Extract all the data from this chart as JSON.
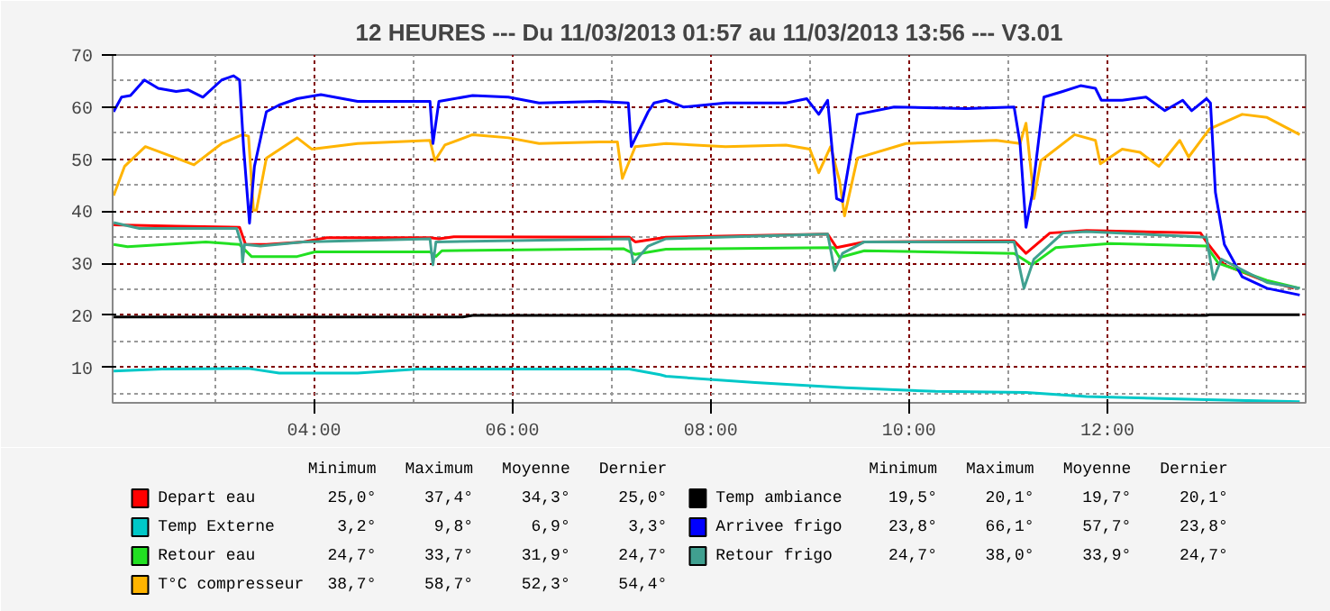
{
  "chart_data": {
    "type": "line",
    "title": "12 HEURES --- Du 11/03/2013 01:57 au 11/03/2013 13:56 --- V3.01",
    "xlim": [
      1.97,
      14.0
    ],
    "xticks": [
      {
        "value": 4,
        "label": "04:00"
      },
      {
        "value": 6,
        "label": "06:00"
      },
      {
        "value": 8,
        "label": "08:00"
      },
      {
        "value": 10,
        "label": "10:00"
      },
      {
        "value": 12,
        "label": "12:00"
      }
    ],
    "ylim": [
      3.2,
      70
    ],
    "yticks": [
      10,
      20,
      30,
      40,
      50,
      60,
      70
    ],
    "grid": true,
    "legend": "bottom",
    "series": [
      {
        "name": "Depart eau",
        "color": "#ff0000",
        "x": [
          1.98,
          2.61,
          3.25,
          3.31,
          3.52,
          3.89,
          4.13,
          5.17,
          5.26,
          5.41,
          7.18,
          7.24,
          7.55,
          9.18,
          9.27,
          9.55,
          11.06,
          11.18,
          11.42,
          11.79,
          12.94,
          13.0,
          13.18,
          13.55,
          13.88
        ],
        "values": [
          37.4,
          37.1,
          36.9,
          33.6,
          33.6,
          34.1,
          34.9,
          34.9,
          34.7,
          35.1,
          35.0,
          34.1,
          35.0,
          35.6,
          33.0,
          34.1,
          34.3,
          31.9,
          35.8,
          36.3,
          35.8,
          34.1,
          29.7,
          26.9,
          25.2
        ]
      },
      {
        "name": "Temp Externe",
        "color": "#00c8c8",
        "x": [
          1.98,
          2.47,
          3.34,
          3.65,
          4.44,
          5.05,
          7.18,
          7.49,
          7.55,
          8.45,
          9.36,
          10.27,
          11.18,
          11.79,
          13.0,
          13.94
        ],
        "values": [
          9.3,
          9.7,
          9.8,
          8.9,
          8.9,
          9.7,
          9.7,
          8.6,
          8.3,
          7.1,
          6.1,
          5.4,
          5.2,
          4.4,
          3.8,
          3.4
        ]
      },
      {
        "name": "Retour eau",
        "color": "#22e022",
        "x": [
          1.98,
          2.12,
          2.91,
          3.25,
          3.37,
          3.83,
          4.01,
          5.17,
          5.23,
          5.29,
          7.12,
          7.24,
          7.55,
          9.24,
          9.3,
          9.55,
          11.06,
          11.24,
          11.48,
          12.03,
          13.0,
          13.12,
          13.61,
          13.94
        ],
        "values": [
          33.6,
          33.2,
          34.1,
          33.6,
          31.3,
          31.3,
          32.2,
          32.2,
          31.3,
          32.4,
          32.8,
          31.7,
          32.7,
          33.0,
          31.1,
          32.4,
          31.9,
          29.7,
          33.0,
          33.8,
          33.3,
          30.0,
          26.7,
          25.2
        ]
      },
      {
        "name": "T°C compresseur",
        "color": "#ffb400",
        "x": [
          1.98,
          2.09,
          2.3,
          2.61,
          2.79,
          3.07,
          3.28,
          3.34,
          3.39,
          3.42,
          3.52,
          3.83,
          3.98,
          4.44,
          5.17,
          5.22,
          5.32,
          5.6,
          5.96,
          6.27,
          6.88,
          7.06,
          7.11,
          7.24,
          7.55,
          8.15,
          8.76,
          9.0,
          9.09,
          9.21,
          9.3,
          9.35,
          9.48,
          9.97,
          10.88,
          11.12,
          11.18,
          11.26,
          11.33,
          11.67,
          11.88,
          11.93,
          12.15,
          12.33,
          12.52,
          12.73,
          12.82,
          13.03,
          13.36,
          13.61,
          13.94
        ],
        "values": [
          43.0,
          48.6,
          52.4,
          50.2,
          48.9,
          53.0,
          54.7,
          54.4,
          40.2,
          40.2,
          50.2,
          54.1,
          51.9,
          53.0,
          53.6,
          49.7,
          52.7,
          54.7,
          54.1,
          53.0,
          53.3,
          53.3,
          46.3,
          52.4,
          53.0,
          52.4,
          52.7,
          51.9,
          47.4,
          52.4,
          45.8,
          39.1,
          50.2,
          53.0,
          53.6,
          53.0,
          56.9,
          42.4,
          49.7,
          54.7,
          53.6,
          49.1,
          51.9,
          51.3,
          48.6,
          53.6,
          50.4,
          55.8,
          58.6,
          58.0,
          54.7
        ]
      },
      {
        "name": "Temp ambiance",
        "color": "#000000",
        "x": [
          1.98,
          5.5,
          5.6,
          13.0,
          13.03,
          13.94
        ],
        "values": [
          19.7,
          19.7,
          20.0,
          20.0,
          20.1,
          20.1
        ]
      },
      {
        "name": "Arrivee frigo",
        "color": "#0000ff",
        "x": [
          1.98,
          2.06,
          2.15,
          2.29,
          2.43,
          2.61,
          2.73,
          2.88,
          3.07,
          3.19,
          3.25,
          3.29,
          3.35,
          3.4,
          3.52,
          3.65,
          3.83,
          4.07,
          4.44,
          5.17,
          5.2,
          5.26,
          5.6,
          5.96,
          6.27,
          6.88,
          7.17,
          7.2,
          7.37,
          7.43,
          7.55,
          7.73,
          8.15,
          8.76,
          8.97,
          9.09,
          9.18,
          9.27,
          9.33,
          9.48,
          9.85,
          10.58,
          11.06,
          11.12,
          11.18,
          11.24,
          11.36,
          11.55,
          11.73,
          11.88,
          11.94,
          12.15,
          12.39,
          12.58,
          12.76,
          12.85,
          13.0,
          13.04,
          13.09,
          13.18,
          13.36,
          13.61,
          13.94
        ],
        "values": [
          59.1,
          61.9,
          62.2,
          65.2,
          63.6,
          63.0,
          63.3,
          61.9,
          65.2,
          66.0,
          65.2,
          52.4,
          37.7,
          48.6,
          59.1,
          60.4,
          61.6,
          62.4,
          61.1,
          61.1,
          53.0,
          61.1,
          62.2,
          61.9,
          60.8,
          61.1,
          60.8,
          52.4,
          59.1,
          60.8,
          61.3,
          60.0,
          60.8,
          60.8,
          61.6,
          58.6,
          61.3,
          42.4,
          41.9,
          58.6,
          60.0,
          59.7,
          60.0,
          53.0,
          36.9,
          43.0,
          61.9,
          63.0,
          64.1,
          63.6,
          61.3,
          61.3,
          61.9,
          59.3,
          61.3,
          59.3,
          61.6,
          60.8,
          43.6,
          33.6,
          27.4,
          25.2,
          23.9
        ]
      },
      {
        "name": "Retour frigo",
        "color": "#40a090",
        "x": [
          1.98,
          2.24,
          2.61,
          3.22,
          3.27,
          3.28,
          3.3,
          3.46,
          3.89,
          5.17,
          5.2,
          5.23,
          7.18,
          7.22,
          7.37,
          7.55,
          9.18,
          9.25,
          9.33,
          9.55,
          11.06,
          11.16,
          11.26,
          11.55,
          11.79,
          13.0,
          13.07,
          13.15,
          13.61,
          13.94
        ],
        "values": [
          37.8,
          36.7,
          36.7,
          36.7,
          33.6,
          30.2,
          33.6,
          33.3,
          34.1,
          34.7,
          29.7,
          34.1,
          34.7,
          30.0,
          33.3,
          34.7,
          35.6,
          28.6,
          31.9,
          34.1,
          34.1,
          25.2,
          30.8,
          35.8,
          36.1,
          35.0,
          26.9,
          30.8,
          26.3,
          25.2
        ]
      }
    ],
    "annotations": [
      "Minimum",
      "Maximum",
      "Moyenne",
      "Dernier",
      "25,0°",
      "37,4°",
      "34,3°",
      "25,0°",
      "3,2°",
      "9,8°",
      "6,9°",
      "3,3°",
      "24,7°",
      "33,7°",
      "31,9°",
      "24,7°",
      "38,7°",
      "58,7°",
      "52,3°",
      "54,4°",
      "19,5°",
      "20,1°",
      "19,7°",
      "20,1°",
      "23,8°",
      "66,1°",
      "57,7°",
      "23,8°",
      "24,7°",
      "38,0°",
      "33,9°",
      "24,7°"
    ]
  }
}
